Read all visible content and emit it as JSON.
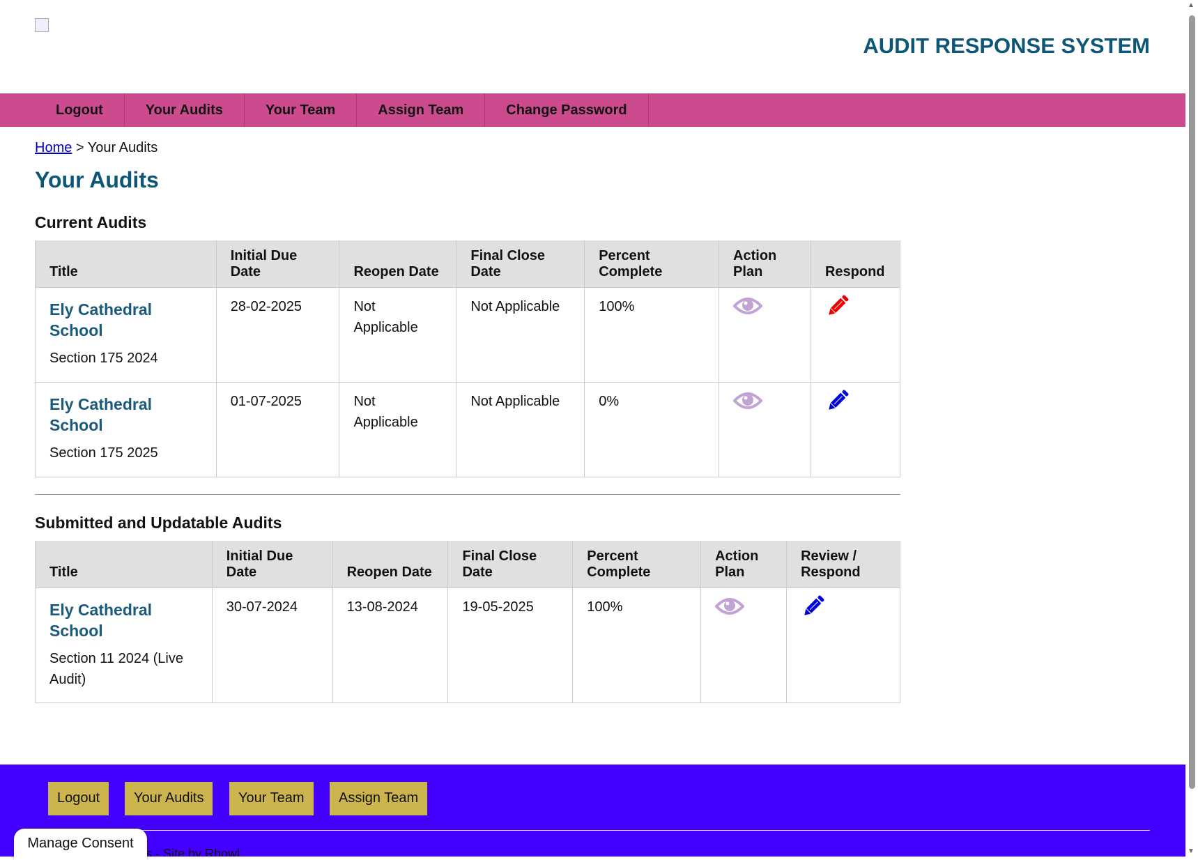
{
  "header": {
    "title": "AUDIT RESPONSE SYSTEM"
  },
  "nav": [
    "Logout",
    "Your Audits",
    "Your Team",
    "Assign Team",
    "Change Password"
  ],
  "breadcrumb": {
    "home": "Home",
    "sep": " > ",
    "current": "Your Audits"
  },
  "page_title": "Your Audits",
  "current": {
    "heading": "Current Audits",
    "columns": [
      "Title",
      "Initial Due Date",
      "Reopen Date",
      "Final Close Date",
      "Percent Complete",
      "Action Plan",
      "Respond"
    ],
    "rows": [
      {
        "name": "Ely Cathedral School",
        "sub": "Section 175 2024",
        "due": "28-02-2025",
        "reopen": "Not Applicable",
        "close": "Not Applicable",
        "pct": "100%",
        "pencil_color": "#ee0000"
      },
      {
        "name": "Ely Cathedral School",
        "sub": "Section 175 2025",
        "due": "01-07-2025",
        "reopen": "Not Applicable",
        "close": "Not Applicable",
        "pct": "0%",
        "pencil_color": "#0000dd"
      }
    ]
  },
  "submitted": {
    "heading": "Submitted and Updatable Audits",
    "columns": [
      "Title",
      "Initial Due Date",
      "Reopen Date",
      "Final Close Date",
      "Percent Complete",
      "Action Plan",
      "Review / Respond"
    ],
    "rows": [
      {
        "name": "Ely Cathedral School",
        "sub": "Section 11 2024 (Live Audit)",
        "due": "30-07-2024",
        "reopen": "13-08-2024",
        "close": "19-05-2025",
        "pct": "100%",
        "pencil_color": "#0000dd"
      }
    ]
  },
  "footer": {
    "buttons": [
      "Logout",
      "Your Audits",
      "Your Team",
      "Assign Team"
    ],
    "text": "its - Site by Rhowl"
  },
  "consent": "Manage Consent",
  "colors": {
    "nav": "#cc4b8f",
    "footer": "#4400ff",
    "footer_button": "#cbb54c",
    "title": "#0e5675",
    "eye": "#c3a3d3"
  }
}
